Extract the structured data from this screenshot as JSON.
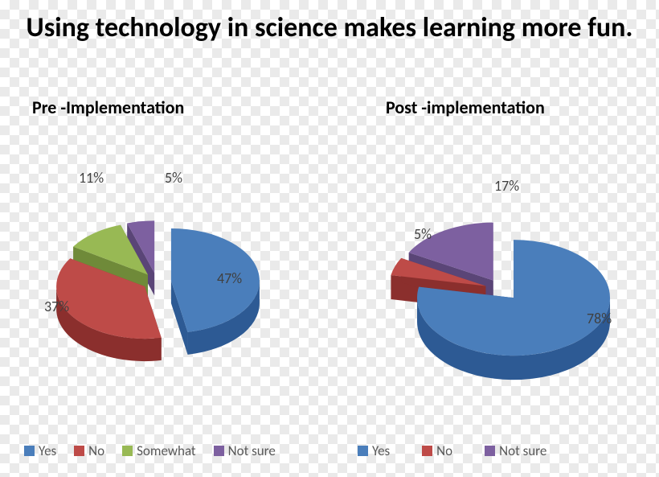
{
  "title": "Using technology in science makes learning more fun.",
  "subtitle_left": "Pre -Implementation",
  "subtitle_right": "Post -implementation",
  "legend_labels": {
    "yes": "Yes",
    "no": "No",
    "somewhat": "Somewhat",
    "notsure": "Not sure"
  },
  "colors": {
    "yes_top": "#4a7ebb",
    "yes_side": "#2d5a94",
    "no_top": "#be4b48",
    "no_side": "#8b2f2d",
    "somewhat_top": "#98b954",
    "somewhat_side": "#6f8a39",
    "notsure_top": "#7d60a0",
    "notsure_side": "#5a4577",
    "label": "#404040",
    "legend_text": "#595959"
  },
  "chart_left": {
    "type": "pie-3d-exploded",
    "percent_labels": {
      "yes": "47%",
      "no": "37%",
      "somewhat": "11%",
      "notsure": "5%"
    },
    "slices": [
      {
        "key": "yes",
        "value": 47
      },
      {
        "key": "no",
        "value": 37
      },
      {
        "key": "somewhat",
        "value": 11
      },
      {
        "key": "notsure",
        "value": 5
      }
    ]
  },
  "chart_right": {
    "type": "pie-3d-exploded",
    "percent_labels": {
      "yes": "78%",
      "no": "5%",
      "notsure": "17%"
    },
    "slices": [
      {
        "key": "yes",
        "value": 78
      },
      {
        "key": "no",
        "value": 5
      },
      {
        "key": "notsure",
        "value": 17
      }
    ]
  }
}
